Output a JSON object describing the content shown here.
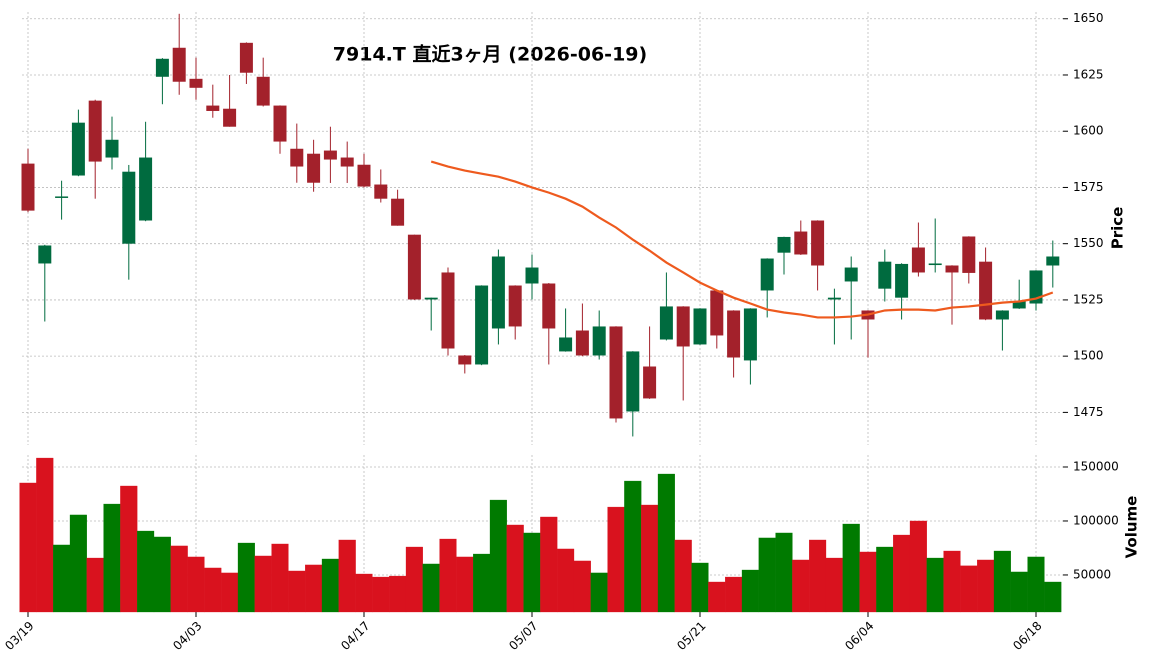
{
  "chart_data": {
    "type": "candlestick",
    "title": "7914.T 直近3ヶ月 (2026-06-19)",
    "categories": [
      "03/19",
      null,
      null,
      null,
      null,
      null,
      null,
      null,
      null,
      null,
      "04/03",
      null,
      null,
      null,
      null,
      null,
      null,
      null,
      null,
      null,
      "04/17",
      null,
      null,
      null,
      null,
      null,
      null,
      null,
      null,
      null,
      "05/07",
      null,
      null,
      null,
      null,
      null,
      null,
      null,
      null,
      null,
      "05/21",
      null,
      null,
      null,
      null,
      null,
      null,
      null,
      null,
      null,
      "06/04",
      null,
      null,
      null,
      null,
      null,
      null,
      null,
      null,
      null,
      "06/18",
      null
    ],
    "open": [
      1585.6,
      1541.2,
      1570.5,
      1580.3,
      1613.6,
      1588.3,
      1550,
      1560.3,
      1624.2,
      1637.1,
      1623.3,
      1611.4,
      1610,
      1639.3,
      1624.2,
      1611.4,
      1592.2,
      1590,
      1591.4,
      1588.3,
      1585.1,
      1576.3,
      1570,
      1554,
      1525.2,
      1537.2,
      1500.3,
      1496.3,
      1512.3,
      1531.4,
      1532.3,
      1532.3,
      1502.1,
      1511.4,
      1500.3,
      1513.2,
      1475.4,
      1495.4,
      1507.4,
      1522.1,
      1505.2,
      1529.2,
      1520.3,
      1498.1,
      1529.2,
      1546,
      1555.4,
      1560.3,
      1525.2,
      1533.2,
      1520.3,
      1530,
      1526,
      1548.3,
      1540.5,
      1540.3,
      1553.2,
      1542,
      1516.3,
      1521.2,
      1523.4,
      1540.3
    ],
    "high": [
      1592.2,
      1549.5,
      1578,
      1609.6,
      1614,
      1606.5,
      1585,
      1604.2,
      1632.5,
      1652.2,
      1632.7,
      1620.7,
      1625,
      1639.5,
      1632.7,
      1611.5,
      1603.4,
      1596.2,
      1602,
      1595.4,
      1590,
      1583,
      1574,
      1554,
      1526,
      1539.4,
      1500.5,
      1531.5,
      1547.4,
      1531.5,
      1545.2,
      1532.5,
      1521.2,
      1523.4,
      1520.3,
      1513.3,
      1502.2,
      1513.2,
      1537.2,
      1522.2,
      1521.3,
      1529.3,
      1520.4,
      1521.3,
      1543.5,
      1553.1,
      1560.3,
      1560.4,
      1530,
      1544.3,
      1520.4,
      1547.4,
      1541.3,
      1559.4,
      1561.2,
      1540.4,
      1553.3,
      1548.3,
      1520.4,
      1534,
      1538.2,
      1551.4
    ],
    "low": [
      1564,
      1515.4,
      1560.7,
      1580,
      1570,
      1583,
      1534,
      1560,
      1612,
      1616.2,
      1614,
      1606,
      1602,
      1621,
      1611,
      1590,
      1577.1,
      1573.1,
      1577,
      1577,
      1575,
      1568.3,
      1558,
      1525,
      1511.4,
      1500.3,
      1492.3,
      1496,
      1505.2,
      1507.4,
      1525.2,
      1496.3,
      1502,
      1500,
      1498.5,
      1470.5,
      1464.3,
      1481,
      1507,
      1480.3,
      1505,
      1503.4,
      1490.5,
      1487.4,
      1517.2,
      1536.3,
      1545,
      1529.2,
      1505.2,
      1507.4,
      1499.4,
      1524.3,
      1516.3,
      1535.4,
      1537.2,
      1514,
      1532.3,
      1516,
      1502.5,
      1521,
      1520.3,
      1530.5
    ],
    "close": [
      1564.7,
      1549.2,
      1571,
      1603.8,
      1586.5,
      1596.2,
      1582,
      1588.3,
      1632.2,
      1622,
      1619.3,
      1609,
      1602,
      1626,
      1611.4,
      1595.4,
      1584.3,
      1577.1,
      1587.4,
      1584.3,
      1575.4,
      1570,
      1558,
      1525.2,
      1526,
      1503.4,
      1496.3,
      1531.4,
      1544.3,
      1513.2,
      1539.4,
      1512.3,
      1508.3,
      1500.3,
      1513.2,
      1472.3,
      1502.1,
      1481.2,
      1522.1,
      1504.3,
      1521.2,
      1509.2,
      1499.4,
      1521.2,
      1543.4,
      1553,
      1545.2,
      1540.3,
      1526,
      1539.4,
      1516.3,
      1542,
      1541,
      1537.2,
      1541.2,
      1537.2,
      1537,
      1516.3,
      1520.3,
      1524.3,
      1538.1,
      1544.3
    ],
    "volume": [
      135200,
      158300,
      77800,
      105600,
      65700,
      115700,
      132400,
      90700,
      85200,
      76900,
      66700,
      56500,
      51900,
      79600,
      67600,
      78700,
      53700,
      59300,
      64800,
      82400,
      50900,
      48100,
      49000,
      75900,
      60200,
      83300,
      66700,
      69400,
      119400,
      96300,
      88900,
      103700,
      74100,
      63000,
      51900,
      112900,
      137000,
      114800,
      143500,
      82400,
      61100,
      43500,
      48100,
      54600,
      84300,
      88900,
      63900,
      82400,
      65700,
      97200,
      71300,
      75900,
      87000,
      100000,
      65700,
      72200,
      58500,
      63900,
      72200,
      52800,
      66700,
      43500
    ],
    "ma": [
      null,
      null,
      null,
      null,
      null,
      null,
      null,
      null,
      null,
      null,
      null,
      null,
      null,
      null,
      null,
      null,
      null,
      null,
      null,
      null,
      null,
      null,
      null,
      null,
      1586.5,
      1584.3,
      1582.5,
      1581.1,
      1579.8,
      1577.6,
      1575,
      1572.7,
      1570,
      1566.5,
      1561.6,
      1557.2,
      1551.8,
      1546.9,
      1541.6,
      1537.2,
      1532.7,
      1529.2,
      1526,
      1523.4,
      1520.7,
      1519.4,
      1518.5,
      1517.2,
      1517.2,
      1517.6,
      1518.5,
      1520.3,
      1520.7,
      1520.7,
      1520.3,
      1521.6,
      1522.1,
      1522.9,
      1523.8,
      1524.3,
      1525.6,
      1528.3
    ],
    "up_color": "#006b3f",
    "down_color": "#a3212b",
    "volume_up_color": "#007a00",
    "volume_down_color": "#d9121e",
    "ma_color": "#ee5a1e",
    "ylabel": "Price",
    "ylim": [
      1460.5,
      1653
    ],
    "yticks": [
      1475,
      1500,
      1525,
      1550,
      1575,
      1600,
      1625,
      1650
    ],
    "volume_label": "Volume",
    "volume_ylim": [
      15700,
      161100
    ],
    "volume_yticks": [
      50000,
      100000,
      150000
    ],
    "grid": true
  }
}
